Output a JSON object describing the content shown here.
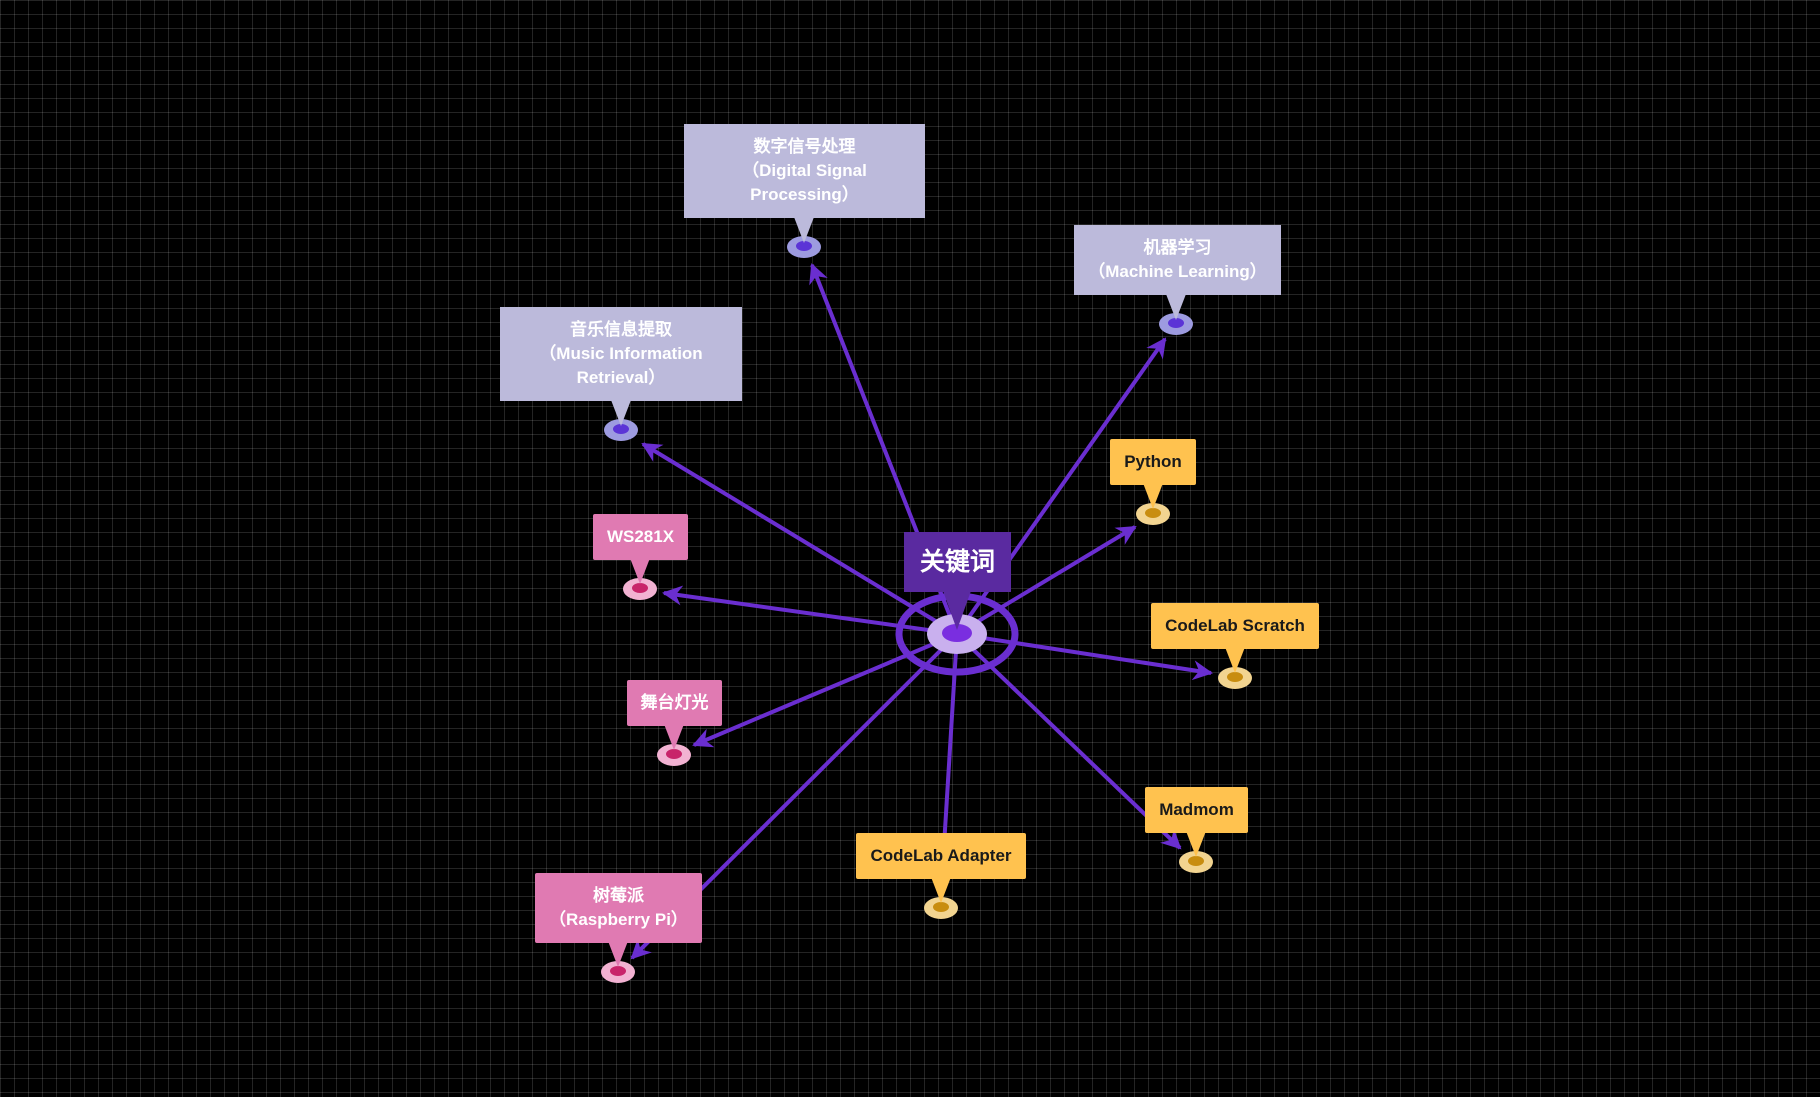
{
  "colors": {
    "background": "#000000",
    "edge": "#6a2ed0",
    "purple_node": "#bcbadb",
    "yellow_node": "#ffc24f",
    "pink_node": "#e07ab2",
    "root_node": "#5a2aa0"
  },
  "root": {
    "label": "关键词"
  },
  "nodes": {
    "dsp": {
      "line1": "数字信号处理",
      "line2": "（Digital Signal",
      "line3": "Processing）"
    },
    "ml": {
      "line1": "机器学习",
      "line2": "（Machine Learning）"
    },
    "mir": {
      "line1": "音乐信息提取",
      "line2": "（Music Information",
      "line3": "Retrieval）"
    },
    "python": {
      "label": "Python"
    },
    "scratch": {
      "label": "CodeLab Scratch"
    },
    "madmom": {
      "label": "Madmom"
    },
    "adapter": {
      "label": "CodeLab Adapter"
    },
    "ws281x": {
      "label": "WS281X"
    },
    "stage": {
      "label": "舞台灯光"
    },
    "raspi": {
      "line1": "树莓派",
      "line2": "（Raspberry Pi）"
    }
  }
}
